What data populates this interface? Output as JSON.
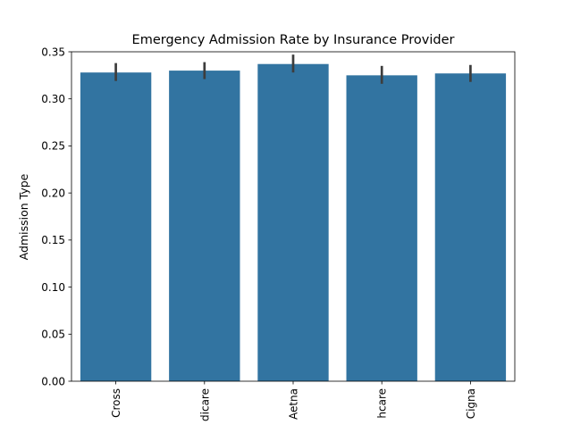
{
  "chart_data": {
    "type": "bar",
    "title": "Emergency Admission Rate by Insurance Provider",
    "xlabel": "",
    "ylabel": "Admission Type",
    "categories": [
      "Cross",
      "dicare",
      "Aetna",
      "hcare",
      "Cigna"
    ],
    "values": [
      0.328,
      0.33,
      0.337,
      0.325,
      0.327
    ],
    "error_low": [
      0.319,
      0.321,
      0.328,
      0.316,
      0.318
    ],
    "error_high": [
      0.338,
      0.339,
      0.347,
      0.335,
      0.336
    ],
    "ylim": [
      0,
      0.35
    ],
    "yticks": [
      "0.00",
      "0.05",
      "0.10",
      "0.15",
      "0.20",
      "0.25",
      "0.30",
      "0.35"
    ],
    "ytick_values": [
      0,
      0.05,
      0.1,
      0.15,
      0.2,
      0.25,
      0.3,
      0.35
    ],
    "grid": false,
    "bar_color": "#3274a1",
    "errorbar_color": "#3d3d3d"
  }
}
